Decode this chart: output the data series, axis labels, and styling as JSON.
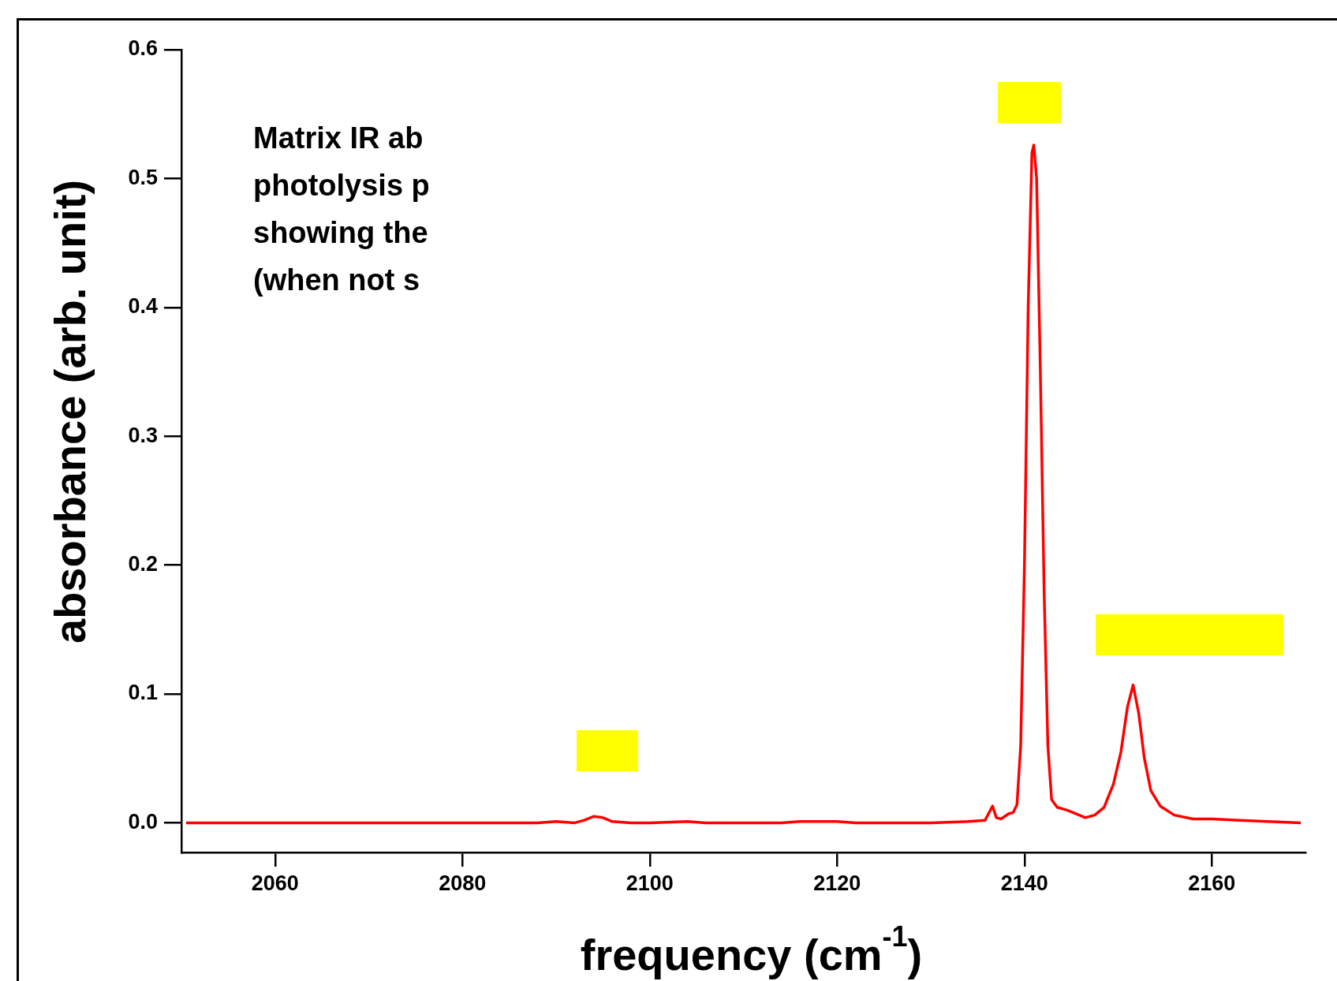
{
  "chart_data": {
    "type": "line",
    "xlabel": "frequency (cm$^{-1}$)",
    "ylabel": "absorbance (arb. unit)",
    "annotations": [
      "Matrix IR ab",
      "photolysis p",
      "showing the",
      "(when not s"
    ],
    "x": [
      2050.5,
      2060,
      2080,
      2088,
      2090,
      2092,
      2093,
      2094,
      2095,
      2096,
      2098,
      2100,
      2104,
      2106,
      2114,
      2116,
      2120,
      2122,
      2130,
      2134,
      2135.8,
      2136.3,
      2136.6,
      2137,
      2137.5,
      2138.3,
      2138.8,
      2139.2,
      2139.6,
      2140.0,
      2140.4,
      2140.8,
      2141.0,
      2141.3,
      2141.7,
      2142.1,
      2142.5,
      2142.9,
      2143.5,
      2144.5,
      2145.5,
      2146.5,
      2147.5,
      2148.5,
      2149.5,
      2150.3,
      2151.0,
      2151.6,
      2152.2,
      2152.8,
      2153.5,
      2154.5,
      2156,
      2158,
      2160,
      2163,
      2166,
      2169.5
    ],
    "series": [
      {
        "color": "#ff0000",
        "values": [
          0,
          0,
          0,
          0,
          0.001,
          0,
          0.002,
          0.005,
          0.004,
          0.001,
          0,
          0,
          0.001,
          0,
          0,
          0.001,
          0.001,
          0,
          0,
          0.001,
          0.002,
          0.009,
          0.013,
          0.004,
          0.003,
          0.007,
          0.008,
          0.014,
          0.06,
          0.2,
          0.4,
          0.52,
          0.526,
          0.5,
          0.35,
          0.18,
          0.06,
          0.018,
          0.012,
          0.01,
          0.007,
          0.004,
          0.006,
          0.012,
          0.03,
          0.055,
          0.09,
          0.107,
          0.085,
          0.05,
          0.025,
          0.013,
          0.006,
          0.003,
          0.003,
          0.002,
          0.001,
          0
        ]
      }
    ],
    "xlim": [
      2050,
      2170
    ],
    "xticks": [
      2060,
      2080,
      2100,
      2120,
      2140,
      2160
    ],
    "ylim": [
      -0.023,
      0.6
    ],
    "yticks": [
      {
        "value": 0,
        "label": "0.0"
      },
      0.1,
      0.2,
      0.3,
      0.4,
      0.5,
      0.6
    ],
    "grid": false,
    "legend": false,
    "marker": "none",
    "line_style": "solid"
  }
}
